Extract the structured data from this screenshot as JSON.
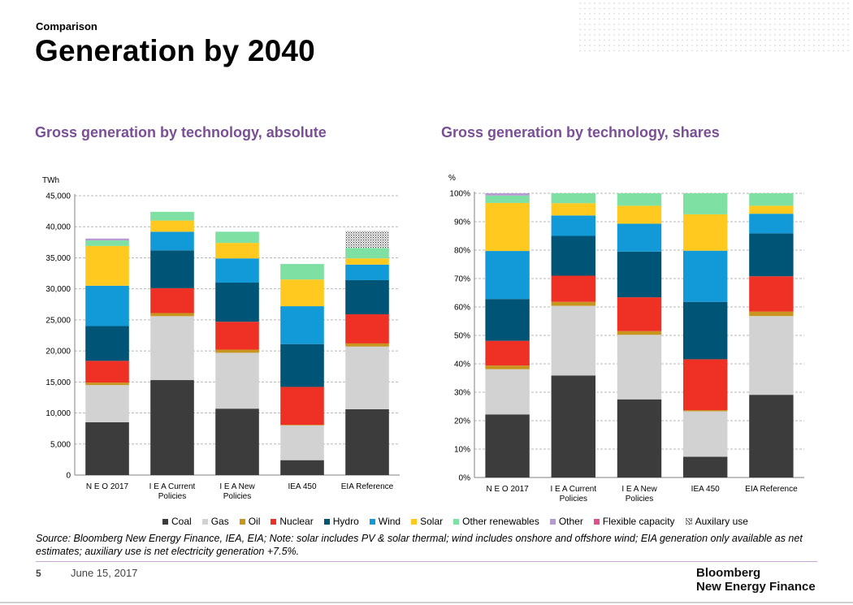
{
  "header": {
    "eyebrow": "Comparison",
    "title": "Generation by 2040"
  },
  "subtitles": {
    "left": "Gross generation by technology, absolute",
    "right": "Gross generation by technology, shares"
  },
  "colors": {
    "Coal": "#3c3c3c",
    "Gas": "#d2d2d2",
    "Oil": "#c8961e",
    "Nuclear": "#ee3124",
    "Hydro": "#005476",
    "Wind": "#129ad8",
    "Solar": "#ffc91f",
    "Other renewables": "#7ee0a3",
    "Other": "#b69ad1",
    "Flexible capacity": "#e0508c",
    "Auxilary use": "#888888",
    "subtitle": "#7a4f96"
  },
  "chart_data": [
    {
      "type": "bar",
      "stacked": true,
      "title": "Gross generation by technology, absolute",
      "ylabel": "TWh",
      "ylim": [
        0,
        45000
      ],
      "yticks": [
        "0",
        "5,000",
        "10,000",
        "15,000",
        "20,000",
        "25,000",
        "30,000",
        "35,000",
        "40,000",
        "45,000"
      ],
      "categories": [
        "N E O 2017",
        "I E A Current Policies",
        "I E A New Policies",
        "IEA 450",
        "EIA Reference"
      ],
      "category_lines": [
        [
          "N E O 2017"
        ],
        [
          "I E A Current",
          "Policies"
        ],
        [
          "I E A New",
          "Policies"
        ],
        [
          "IEA 450"
        ],
        [
          "EIA Reference"
        ]
      ],
      "series": [
        {
          "name": "Coal",
          "values": [
            8500,
            15300,
            10700,
            2400,
            10600
          ]
        },
        {
          "name": "Gas",
          "values": [
            6000,
            10300,
            9000,
            5600,
            10100
          ]
        },
        {
          "name": "Oil",
          "values": [
            400,
            500,
            500,
            100,
            500
          ]
        },
        {
          "name": "Nuclear",
          "values": [
            3500,
            4000,
            4500,
            6100,
            4700
          ]
        },
        {
          "name": "Hydro",
          "values": [
            5600,
            6100,
            6300,
            6900,
            5500
          ]
        },
        {
          "name": "Wind",
          "values": [
            6500,
            3000,
            3900,
            6100,
            2500
          ]
        },
        {
          "name": "Solar",
          "values": [
            6400,
            1800,
            2500,
            4300,
            1000
          ]
        },
        {
          "name": "Other renewables",
          "values": [
            900,
            1400,
            1800,
            2500,
            1700
          ]
        },
        {
          "name": "Other",
          "values": [
            300,
            0,
            0,
            0,
            0
          ]
        },
        {
          "name": "Flexible capacity",
          "values": [
            0,
            0,
            0,
            0,
            0
          ]
        },
        {
          "name": "Auxilary use",
          "values": [
            0,
            0,
            0,
            0,
            2700
          ]
        }
      ]
    },
    {
      "type": "bar",
      "stacked": true,
      "title": "Gross generation by technology, shares",
      "ylabel": "%",
      "ylim": [
        0,
        100
      ],
      "yticks": [
        "0%",
        "10%",
        "20%",
        "30%",
        "40%",
        "50%",
        "60%",
        "70%",
        "80%",
        "90%",
        "100%"
      ],
      "categories": [
        "N E O 2017",
        "I E A Current Policies",
        "I E A New Policies",
        "IEA 450",
        "EIA Reference"
      ],
      "category_lines": [
        [
          "N E O 2017"
        ],
        [
          "I E A Current",
          "Policies"
        ],
        [
          "I E A New",
          "Policies"
        ],
        [
          "IEA 450"
        ],
        [
          "EIA Reference"
        ]
      ],
      "series": [
        {
          "name": "Coal",
          "values": [
            22.2,
            35.9,
            27.5,
            7.3,
            29.1
          ]
        },
        {
          "name": "Gas",
          "values": [
            15.9,
            24.5,
            22.7,
            16.0,
            27.7
          ]
        },
        {
          "name": "Oil",
          "values": [
            1.3,
            1.4,
            1.3,
            0.4,
            1.6
          ]
        },
        {
          "name": "Nuclear",
          "values": [
            8.7,
            9.2,
            11.9,
            17.9,
            12.4
          ]
        },
        {
          "name": "Hydro",
          "values": [
            14.7,
            14.0,
            16.1,
            20.2,
            15.1
          ]
        },
        {
          "name": "Wind",
          "values": [
            16.9,
            7.2,
            9.8,
            18.0,
            6.9
          ]
        },
        {
          "name": "Solar",
          "values": [
            16.9,
            4.3,
            6.3,
            12.8,
            2.8
          ]
        },
        {
          "name": "Other renewables",
          "values": [
            2.6,
            3.5,
            4.4,
            7.4,
            4.4
          ]
        },
        {
          "name": "Other",
          "values": [
            0.8,
            0,
            0,
            0,
            0
          ]
        },
        {
          "name": "Flexible capacity",
          "values": [
            0,
            0,
            0,
            0,
            0
          ]
        }
      ]
    }
  ],
  "legend": [
    "Coal",
    "Gas",
    "Oil",
    "Nuclear",
    "Hydro",
    "Wind",
    "Solar",
    "Other renewables",
    "Other",
    "Flexible capacity",
    "Auxilary use"
  ],
  "footer": {
    "source": "Source: Bloomberg New Energy Finance, IEA, EIA; Note: solar includes PV & solar thermal; wind includes onshore and offshore wind; EIA generation only available as net estimates; auxiliary use is net electricity generation +7.5%.",
    "page": "5",
    "date": "June 15, 2017",
    "brand_line1": "Bloomberg",
    "brand_line2": "New Energy Finance"
  }
}
